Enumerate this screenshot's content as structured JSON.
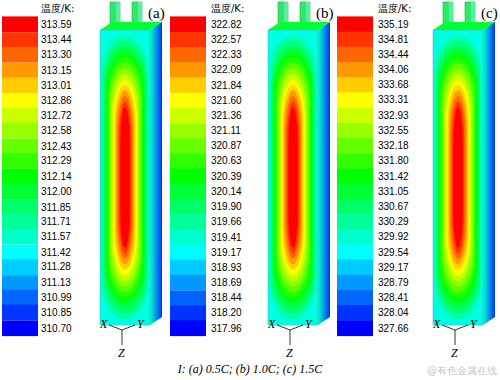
{
  "chart_data": [
    {
      "type": "contour",
      "title": "(a)",
      "axis_labels": [
        "X",
        "Y",
        "Z"
      ],
      "colorbar": {
        "label": "温度/K:",
        "range": [
          310.7,
          313.59
        ],
        "ticks": [
          313.59,
          313.44,
          {
            "value": 313.3,
            "label": "313.30"
          },
          313.15,
          313.01,
          312.86,
          312.72,
          312.58,
          312.43,
          312.29,
          312.14,
          {
            "value": 312.0,
            "label": "312.00"
          },
          311.85,
          311.71,
          311.57,
          311.42,
          311.28,
          311.13,
          310.99,
          310.85,
          {
            "value": 310.7,
            "label": "310.70"
          }
        ]
      }
    },
    {
      "type": "contour",
      "title": "(b)",
      "axis_labels": [
        "X",
        "Y",
        "Z"
      ],
      "colorbar": {
        "label": "温度/K:",
        "range": [
          317.96,
          322.82
        ],
        "ticks": [
          322.82,
          322.57,
          322.33,
          322.09,
          321.84,
          {
            "value": 321.6,
            "label": "321.60"
          },
          321.36,
          321.11,
          320.87,
          320.63,
          320.39,
          320.14,
          {
            "value": 319.9,
            "label": "319.90"
          },
          319.66,
          319.41,
          319.17,
          318.93,
          318.69,
          318.44,
          {
            "value": 318.2,
            "label": "318.20"
          },
          317.96
        ]
      }
    },
    {
      "type": "contour",
      "title": "(c)",
      "axis_labels": [
        "X",
        "Y",
        "Z"
      ],
      "colorbar": {
        "label": "温度/K:",
        "range": [
          327.66,
          335.19
        ],
        "ticks": [
          335.19,
          334.81,
          334.44,
          334.06,
          333.68,
          333.31,
          332.93,
          332.55,
          332.18,
          {
            "value": 331.8,
            "label": "331.80"
          },
          331.42,
          331.05,
          330.67,
          330.29,
          329.92,
          329.54,
          329.17,
          328.79,
          328.41,
          328.04,
          327.66
        ]
      }
    }
  ],
  "caption": "I: (a) 0.5C; (b) 1.0C; (c) 1.5C",
  "watermark": "@有色金属在线"
}
